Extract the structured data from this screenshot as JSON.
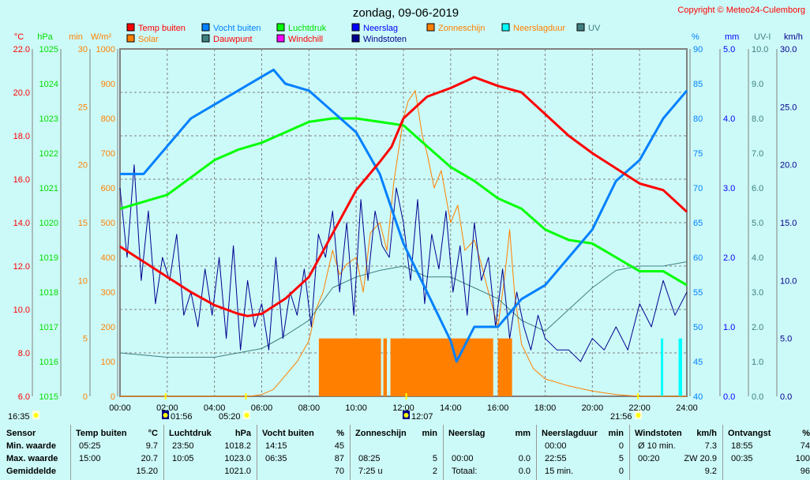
{
  "title": "zondag, 09-06-2019",
  "copyright": "Copyright © Meteo24-Culemborg",
  "legend": [
    {
      "label": "Temp buiten",
      "color": "#ff0000",
      "text_color": "#ff0000"
    },
    {
      "label": "Vocht buiten",
      "color": "#0080ff",
      "text_color": "#0080ff"
    },
    {
      "label": "Luchtdruk",
      "color": "#00ff00",
      "text_color": "#00e000"
    },
    {
      "label": "Neerslag",
      "color": "#0000ff",
      "text_color": "#0000ff"
    },
    {
      "label": "Zonneschijn",
      "color": "#ff8000",
      "text_color": "#ff8000"
    },
    {
      "label": "Neerslagduur",
      "color": "#00ffff",
      "text_color": "#ff8000"
    },
    {
      "label": "UV",
      "color": "#408080",
      "text_color": "#408080"
    },
    {
      "label": "Solar",
      "color": "#ff8000",
      "text_color": "#ff8000"
    },
    {
      "label": "Dauwpunt",
      "color": "#408080",
      "text_color": "#ff0000"
    },
    {
      "label": "Windchill",
      "color": "#ff00ff",
      "text_color": "#ff0000"
    },
    {
      "label": "Windstoten",
      "color": "#000090",
      "text_color": "#000090"
    }
  ],
  "astro": [
    {
      "time": "16:35",
      "icon": "sun-icon"
    },
    {
      "time": "01:56",
      "icon": "moonrise-icon"
    },
    {
      "time": "05:20",
      "icon": "sunrise-icon"
    },
    {
      "time": "12:07",
      "icon": "moonset-icon"
    },
    {
      "time": "21:56",
      "icon": "sunset-icon"
    }
  ],
  "chart_data": {
    "type": "line",
    "title": "zondag, 09-06-2019",
    "x_ticks": [
      "00:00",
      "02:00",
      "04:00",
      "06:00",
      "08:00",
      "10:00",
      "12:00",
      "14:00",
      "16:00",
      "18:00",
      "20:00",
      "22:00",
      "24:00"
    ],
    "xlim": [
      0,
      24
    ],
    "axes": {
      "temp": {
        "unit": "°C",
        "min": 6,
        "max": 22,
        "step": 2,
        "decimals": 1,
        "color": "#ff0000"
      },
      "press": {
        "unit": "hPa",
        "min": 1015,
        "max": 1025,
        "step": 1,
        "decimals": 0,
        "color": "#00e000"
      },
      "min": {
        "unit": "min",
        "min": 0,
        "max": 30,
        "step": 5,
        "decimals": 0,
        "color": "#ff8000"
      },
      "solar": {
        "unit": "W/m²",
        "min": 0,
        "max": 1000,
        "step": 100,
        "decimals": 0,
        "color": "#ff8000"
      },
      "hum": {
        "unit": "%",
        "min": 40,
        "max": 90,
        "step": 5,
        "decimals": 0,
        "color": "#0080ff"
      },
      "rain": {
        "unit": "mm",
        "min": 0,
        "max": 5,
        "step": 1,
        "decimals": 1,
        "color": "#0000ff"
      },
      "uv": {
        "unit": "UV-I",
        "min": 0,
        "max": 10,
        "step": 1,
        "decimals": 1,
        "color": "#408080"
      },
      "wind": {
        "unit": "km/h",
        "min": 0,
        "max": 30,
        "step": 5,
        "decimals": 1,
        "color": "#000090"
      }
    },
    "series": [
      {
        "name": "Solar",
        "axis": "solar",
        "color": "#ff8000",
        "width": 1,
        "x": [
          0,
          5.5,
          6,
          6.5,
          7,
          7.5,
          8,
          8.3,
          8.6,
          9,
          9.3,
          9.6,
          10,
          10.3,
          10.6,
          11,
          11.3,
          11.6,
          12,
          12.2,
          12.5,
          12.8,
          13,
          13.3,
          13.6,
          14,
          14.3,
          14.6,
          15,
          15.3,
          15.6,
          16,
          16.3,
          16.5,
          16.7,
          17,
          17.5,
          18,
          19,
          20,
          21,
          22,
          24
        ],
        "y": [
          0,
          0,
          5,
          20,
          60,
          100,
          160,
          250,
          300,
          420,
          350,
          380,
          400,
          300,
          470,
          500,
          420,
          620,
          800,
          850,
          880,
          750,
          700,
          600,
          650,
          500,
          550,
          420,
          450,
          380,
          300,
          200,
          350,
          480,
          300,
          150,
          80,
          50,
          30,
          15,
          5,
          0,
          0
        ]
      },
      {
        "name": "Dauwpunt",
        "axis": "temp",
        "color": "#408080",
        "width": 1,
        "x": [
          0,
          1,
          2,
          3,
          4,
          5,
          6,
          7,
          8,
          9,
          10,
          11,
          12,
          13,
          14,
          15,
          16,
          17,
          18,
          19,
          20,
          21,
          22,
          23,
          24
        ],
        "y": [
          8.0,
          7.9,
          7.8,
          7.8,
          7.8,
          8.0,
          8.2,
          8.8,
          9.5,
          11.0,
          11.5,
          11.8,
          12.0,
          11.5,
          11.5,
          11.0,
          10.5,
          9.5,
          9.0,
          10.0,
          11.0,
          11.8,
          12.0,
          12.0,
          12.2
        ]
      },
      {
        "name": "Windstoten",
        "axis": "wind",
        "color": "#000090",
        "width": 1,
        "x": [
          0,
          0.3,
          0.6,
          0.9,
          1.2,
          1.5,
          1.8,
          2.1,
          2.4,
          2.7,
          3,
          3.3,
          3.6,
          3.9,
          4.2,
          4.5,
          4.8,
          5.1,
          5.4,
          5.7,
          6,
          6.3,
          6.6,
          6.9,
          7.2,
          7.5,
          7.8,
          8.1,
          8.4,
          8.7,
          9,
          9.3,
          9.6,
          9.9,
          10.2,
          10.5,
          10.8,
          11.1,
          11.4,
          11.7,
          12,
          12.3,
          12.6,
          12.9,
          13.2,
          13.5,
          13.8,
          14.1,
          14.4,
          14.7,
          15,
          15.3,
          15.6,
          15.9,
          16.2,
          16.5,
          16.8,
          17.1,
          17.4,
          17.7,
          18,
          18.5,
          19,
          19.5,
          20,
          20.5,
          21,
          21.5,
          22,
          22.5,
          23,
          23.5,
          24
        ],
        "y": [
          18,
          12,
          20,
          10,
          16,
          8,
          12,
          10,
          14,
          7,
          9,
          6,
          11,
          7,
          12,
          5,
          13,
          4,
          10,
          6,
          8,
          4,
          12,
          5,
          9,
          7,
          11,
          6,
          14,
          12,
          16,
          9,
          15,
          7,
          17,
          10,
          16,
          13,
          12,
          18,
          15,
          10,
          17,
          8,
          14,
          11,
          16,
          9,
          13,
          7,
          15,
          10,
          12,
          6,
          11,
          5,
          9,
          6,
          4,
          7,
          5,
          4,
          4,
          3,
          5,
          4,
          6,
          4,
          8,
          6,
          10,
          7,
          9
        ]
      },
      {
        "name": "Luchtdruk",
        "axis": "press",
        "color": "#00ff00",
        "width": 3,
        "x": [
          0,
          1,
          2,
          3,
          4,
          5,
          6,
          7,
          8,
          9,
          10,
          11,
          12,
          13,
          14,
          15,
          16,
          17,
          18,
          19,
          20,
          21,
          22,
          23,
          24
        ],
        "y": [
          1020.4,
          1020.6,
          1020.8,
          1021.3,
          1021.8,
          1022.1,
          1022.3,
          1022.6,
          1022.9,
          1023.0,
          1023.0,
          1022.9,
          1022.8,
          1022.2,
          1021.6,
          1021.2,
          1020.7,
          1020.4,
          1019.8,
          1019.5,
          1019.4,
          1019.0,
          1018.6,
          1018.6,
          1018.2
        ]
      },
      {
        "name": "Vocht buiten",
        "axis": "hum",
        "color": "#0080ff",
        "width": 3,
        "x": [
          0,
          1,
          2,
          3,
          4,
          5,
          6,
          6.5,
          7,
          8,
          9,
          10,
          11,
          12,
          13,
          14,
          14.25,
          15,
          16,
          17,
          18,
          19,
          20,
          21,
          22,
          23,
          24
        ],
        "y": [
          72,
          72,
          76,
          80,
          82,
          84,
          86,
          87,
          85,
          84,
          81,
          78,
          72,
          62,
          55,
          48,
          45,
          50,
          50,
          54,
          56,
          60,
          64,
          71,
          74,
          80,
          84
        ]
      },
      {
        "name": "Temp buiten",
        "axis": "temp",
        "color": "#ff0000",
        "width": 3,
        "x": [
          0,
          1,
          2,
          3,
          4,
          5,
          5.4,
          6,
          7,
          8,
          9,
          10,
          11,
          11.5,
          12,
          13,
          14,
          15,
          16,
          17,
          18,
          19,
          20,
          21,
          22,
          23,
          24
        ],
        "y": [
          12.9,
          12.2,
          11.5,
          10.8,
          10.2,
          9.8,
          9.7,
          9.8,
          10.5,
          11.5,
          13.5,
          15.5,
          16.8,
          17.5,
          18.8,
          19.8,
          20.2,
          20.7,
          20.3,
          20.0,
          19.0,
          18.0,
          17.2,
          16.5,
          15.8,
          15.5,
          14.5
        ]
      }
    ],
    "bars": [
      {
        "name": "Zonneschijn",
        "axis": "min",
        "color": "#ff8000",
        "value": 5,
        "periods": [
          [
            8.42,
            11.05
          ],
          [
            11.15,
            11.3
          ],
          [
            11.45,
            15.8
          ],
          [
            16.0,
            16.6
          ]
        ]
      },
      {
        "name": "Neerslagduur",
        "axis": "min",
        "color": "#00ffff",
        "value": 5,
        "periods": [
          [
            22.9,
            23.0
          ],
          [
            23.65,
            23.8
          ]
        ]
      }
    ]
  },
  "table": {
    "sensor": {
      "header": "Sensor",
      "rows": [
        "Min. waarde",
        "Max. waarde",
        "Gemiddelde"
      ]
    },
    "columns": [
      {
        "header": "Temp buiten",
        "unit": "°C",
        "rows": [
          [
            "05:25",
            "9.7"
          ],
          [
            "15:00",
            "20.7"
          ],
          [
            "",
            "15.20"
          ]
        ]
      },
      {
        "header": "Luchtdruk",
        "unit": "hPa",
        "rows": [
          [
            "23:50",
            "1018.2"
          ],
          [
            "10:05",
            "1023.0"
          ],
          [
            "",
            "1021.0"
          ]
        ]
      },
      {
        "header": "Vocht buiten",
        "unit": "%",
        "rows": [
          [
            "14:15",
            "45"
          ],
          [
            "06:35",
            "87"
          ],
          [
            "",
            "70"
          ]
        ]
      },
      {
        "header": "Zonneschijn",
        "unit": "min",
        "rows": [
          [
            "",
            ""
          ],
          [
            "08:25",
            "5"
          ],
          [
            "7:25 u",
            "2"
          ]
        ]
      },
      {
        "header": "Neerslag",
        "unit": "mm",
        "rows": [
          [
            "",
            ""
          ],
          [
            "00:00",
            "0.0"
          ],
          [
            "Totaal:",
            "0.0"
          ]
        ]
      },
      {
        "header": "Neerslagduur",
        "unit": "min",
        "rows": [
          [
            "00:00",
            "0"
          ],
          [
            "22:55",
            "5"
          ],
          [
            "15 min.",
            "0"
          ]
        ]
      },
      {
        "header": "Windstoten",
        "unit": "km/h",
        "rows": [
          [
            "Ø 10 min.",
            "7.3"
          ],
          [
            "00:20",
            "ZW 20.9"
          ],
          [
            "",
            "9.2"
          ]
        ]
      },
      {
        "header": "Ontvangst",
        "unit": "%",
        "rows": [
          [
            "18:55",
            "74"
          ],
          [
            "00:35",
            "100"
          ],
          [
            "",
            "96"
          ]
        ]
      }
    ]
  }
}
